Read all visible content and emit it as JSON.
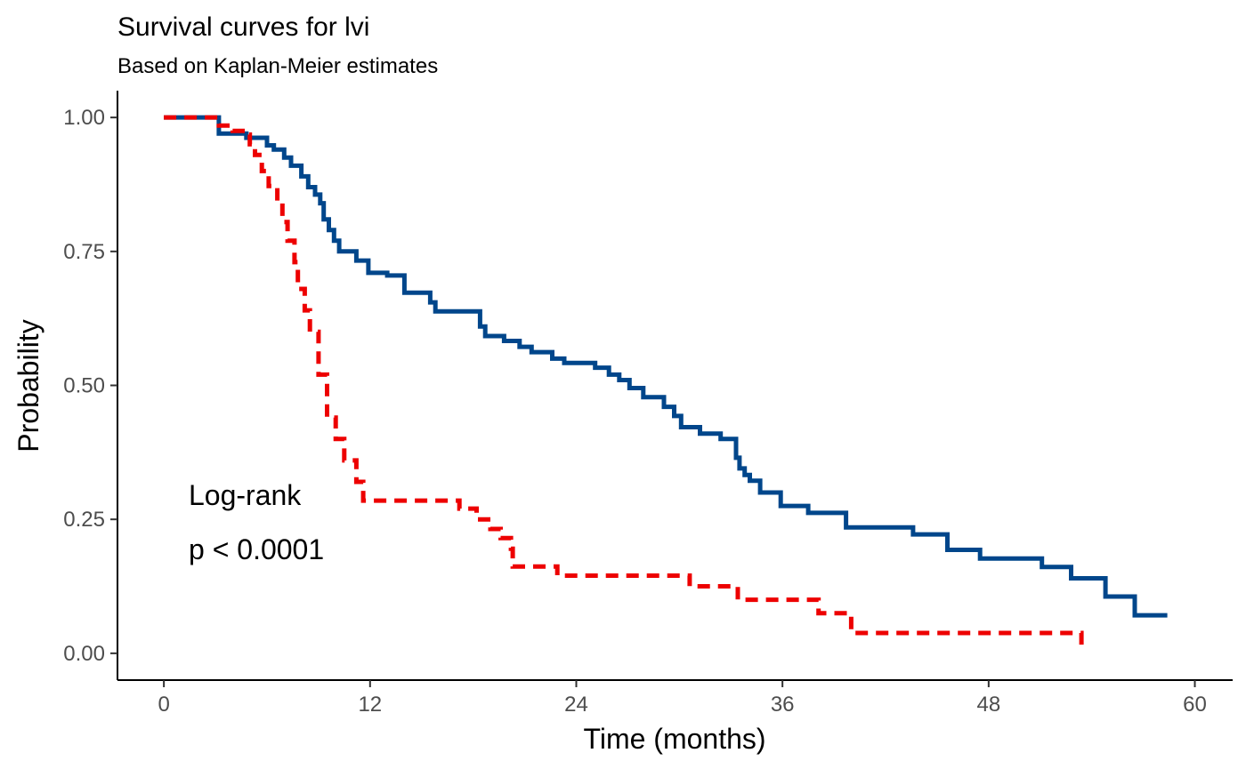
{
  "chart_data": {
    "type": "line",
    "title": "Survival curves for lvi",
    "subtitle": "Based on Kaplan-Meier estimates",
    "xlabel": "Time (months)",
    "ylabel": "Probability",
    "xlim": [
      -2.7,
      62.2
    ],
    "ylim": [
      -0.05,
      1.05
    ],
    "x_ticks": [
      0,
      12,
      24,
      36,
      48,
      60
    ],
    "x_tick_labels": [
      "0",
      "12",
      "24",
      "36",
      "48",
      "60"
    ],
    "y_ticks": [
      0.0,
      0.25,
      0.5,
      0.75,
      1.0
    ],
    "y_tick_labels": [
      "0.00",
      "0.25",
      "0.50",
      "0.75",
      "1.00"
    ],
    "grid": false,
    "legend": "none",
    "annotations": [
      "Log-rank",
      "p < 0.0001"
    ],
    "series": [
      {
        "color": "#00468b",
        "line_style": "solid",
        "points": [
          [
            0,
            1.0
          ],
          [
            3.2,
            1.0
          ],
          [
            3.2,
            0.97
          ],
          [
            4.8,
            0.97
          ],
          [
            4.8,
            0.962
          ],
          [
            6.0,
            0.962
          ],
          [
            6.0,
            0.948
          ],
          [
            6.4,
            0.948
          ],
          [
            6.4,
            0.94
          ],
          [
            7.0,
            0.94
          ],
          [
            7.0,
            0.925
          ],
          [
            7.4,
            0.925
          ],
          [
            7.4,
            0.91
          ],
          [
            8.0,
            0.91
          ],
          [
            8.0,
            0.89
          ],
          [
            8.4,
            0.89
          ],
          [
            8.4,
            0.87
          ],
          [
            8.8,
            0.87
          ],
          [
            8.8,
            0.856
          ],
          [
            9.1,
            0.856
          ],
          [
            9.1,
            0.84
          ],
          [
            9.3,
            0.84
          ],
          [
            9.3,
            0.81
          ],
          [
            9.6,
            0.81
          ],
          [
            9.6,
            0.79
          ],
          [
            9.9,
            0.79
          ],
          [
            9.9,
            0.77
          ],
          [
            10.2,
            0.77
          ],
          [
            10.2,
            0.75
          ],
          [
            11.2,
            0.75
          ],
          [
            11.2,
            0.733
          ],
          [
            11.9,
            0.733
          ],
          [
            11.9,
            0.71
          ],
          [
            13.0,
            0.71
          ],
          [
            13.0,
            0.705
          ],
          [
            14.0,
            0.705
          ],
          [
            14.0,
            0.673
          ],
          [
            15.5,
            0.673
          ],
          [
            15.5,
            0.655
          ],
          [
            15.8,
            0.655
          ],
          [
            15.8,
            0.638
          ],
          [
            18.4,
            0.638
          ],
          [
            18.4,
            0.61
          ],
          [
            18.7,
            0.61
          ],
          [
            18.7,
            0.592
          ],
          [
            19.8,
            0.592
          ],
          [
            19.8,
            0.583
          ],
          [
            20.7,
            0.583
          ],
          [
            20.7,
            0.572
          ],
          [
            21.4,
            0.572
          ],
          [
            21.4,
            0.562
          ],
          [
            22.6,
            0.562
          ],
          [
            22.6,
            0.55
          ],
          [
            23.3,
            0.55
          ],
          [
            23.3,
            0.542
          ],
          [
            25.1,
            0.542
          ],
          [
            25.1,
            0.533
          ],
          [
            25.9,
            0.533
          ],
          [
            25.9,
            0.52
          ],
          [
            26.5,
            0.52
          ],
          [
            26.5,
            0.51
          ],
          [
            27.1,
            0.51
          ],
          [
            27.1,
            0.495
          ],
          [
            27.9,
            0.495
          ],
          [
            27.9,
            0.478
          ],
          [
            29.1,
            0.478
          ],
          [
            29.1,
            0.46
          ],
          [
            29.7,
            0.46
          ],
          [
            29.7,
            0.443
          ],
          [
            30.1,
            0.443
          ],
          [
            30.1,
            0.422
          ],
          [
            31.2,
            0.422
          ],
          [
            31.2,
            0.41
          ],
          [
            32.4,
            0.41
          ],
          [
            32.4,
            0.4
          ],
          [
            33.3,
            0.4
          ],
          [
            33.3,
            0.365
          ],
          [
            33.5,
            0.365
          ],
          [
            33.5,
            0.345
          ],
          [
            33.8,
            0.345
          ],
          [
            33.8,
            0.333
          ],
          [
            34.1,
            0.333
          ],
          [
            34.1,
            0.322
          ],
          [
            34.7,
            0.322
          ],
          [
            34.7,
            0.3
          ],
          [
            35.9,
            0.3
          ],
          [
            35.9,
            0.275
          ],
          [
            37.5,
            0.275
          ],
          [
            37.5,
            0.262
          ],
          [
            39.7,
            0.262
          ],
          [
            39.7,
            0.235
          ],
          [
            43.6,
            0.235
          ],
          [
            43.6,
            0.222
          ],
          [
            45.6,
            0.222
          ],
          [
            45.6,
            0.193
          ],
          [
            47.5,
            0.193
          ],
          [
            47.5,
            0.177
          ],
          [
            51.1,
            0.177
          ],
          [
            51.1,
            0.161
          ],
          [
            52.8,
            0.161
          ],
          [
            52.8,
            0.14
          ],
          [
            54.8,
            0.14
          ],
          [
            54.8,
            0.106
          ],
          [
            56.5,
            0.106
          ],
          [
            56.5,
            0.071
          ],
          [
            58.4,
            0.071
          ]
        ]
      },
      {
        "color": "#ed0000",
        "line_style": "dashed",
        "points": [
          [
            0,
            1.0
          ],
          [
            3.2,
            1.0
          ],
          [
            3.2,
            0.985
          ],
          [
            4.0,
            0.985
          ],
          [
            4.0,
            0.975
          ],
          [
            4.8,
            0.975
          ],
          [
            4.8,
            0.968
          ],
          [
            5.0,
            0.968
          ],
          [
            5.0,
            0.95
          ],
          [
            5.3,
            0.95
          ],
          [
            5.3,
            0.93
          ],
          [
            5.7,
            0.93
          ],
          [
            5.7,
            0.9
          ],
          [
            6.1,
            0.9
          ],
          [
            6.1,
            0.872
          ],
          [
            6.6,
            0.872
          ],
          [
            6.6,
            0.84
          ],
          [
            6.9,
            0.84
          ],
          [
            6.9,
            0.805
          ],
          [
            7.2,
            0.805
          ],
          [
            7.2,
            0.77
          ],
          [
            7.6,
            0.77
          ],
          [
            7.6,
            0.73
          ],
          [
            7.8,
            0.73
          ],
          [
            7.8,
            0.68
          ],
          [
            8.2,
            0.68
          ],
          [
            8.2,
            0.64
          ],
          [
            8.5,
            0.64
          ],
          [
            8.5,
            0.6
          ],
          [
            9.0,
            0.6
          ],
          [
            9.0,
            0.52
          ],
          [
            9.5,
            0.52
          ],
          [
            9.5,
            0.44
          ],
          [
            10.0,
            0.44
          ],
          [
            10.0,
            0.4
          ],
          [
            10.5,
            0.4
          ],
          [
            10.5,
            0.36
          ],
          [
            11.2,
            0.36
          ],
          [
            11.2,
            0.32
          ],
          [
            11.6,
            0.32
          ],
          [
            11.6,
            0.285
          ],
          [
            17.2,
            0.285
          ],
          [
            17.2,
            0.27
          ],
          [
            18.2,
            0.27
          ],
          [
            18.2,
            0.25
          ],
          [
            19.0,
            0.25
          ],
          [
            19.0,
            0.232
          ],
          [
            19.6,
            0.232
          ],
          [
            19.6,
            0.215
          ],
          [
            20.2,
            0.215
          ],
          [
            20.2,
            0.195
          ],
          [
            20.3,
            0.195
          ],
          [
            20.3,
            0.162
          ],
          [
            22.9,
            0.162
          ],
          [
            22.9,
            0.145
          ],
          [
            30.6,
            0.145
          ],
          [
            30.6,
            0.125
          ],
          [
            33.4,
            0.125
          ],
          [
            33.4,
            0.1
          ],
          [
            38.1,
            0.1
          ],
          [
            38.1,
            0.075
          ],
          [
            40.0,
            0.075
          ],
          [
            40.0,
            0.038
          ],
          [
            53.4,
            0.038
          ],
          [
            53.4,
            0.002
          ]
        ]
      }
    ]
  }
}
